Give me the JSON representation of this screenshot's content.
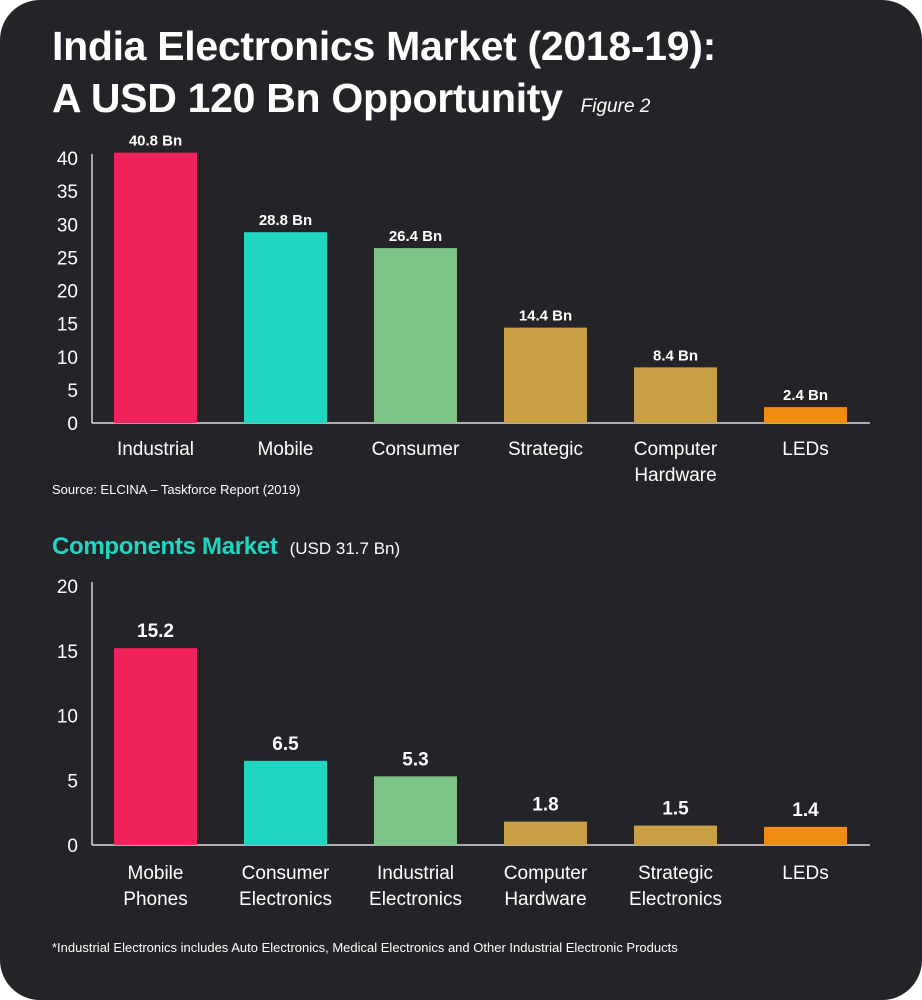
{
  "title_line1": "India Electronics Market (2018-19):",
  "title_line2": "A USD 120 Bn Opportunity",
  "figure_label": "Figure 2",
  "source": "Source: ELCINA – Taskforce Report (2019)",
  "components_heading": "Components Market",
  "components_subheading": "(USD 31.7 Bn)",
  "footnote": "*Industrial Electronics includes Auto Electronics, Medical Electronics and Other Industrial Electronic Products",
  "chart_data": [
    {
      "type": "bar",
      "categories": [
        [
          "Industrial"
        ],
        [
          "Mobile"
        ],
        [
          "Consumer"
        ],
        [
          "Strategic"
        ],
        [
          "Computer",
          "Hardware"
        ],
        [
          "LEDs"
        ]
      ],
      "values": [
        40.8,
        28.8,
        26.4,
        14.4,
        8.4,
        2.4
      ],
      "data_labels": [
        "40.8 Bn",
        "28.8 Bn",
        "26.4 Bn",
        "14.4 Bn",
        "8.4 Bn",
        "2.4 Bn"
      ],
      "colors": [
        "#f0235a",
        "#1fd6c1",
        "#7dc487",
        "#c9a043",
        "#c9a043",
        "#f08c12"
      ],
      "yticks": [
        "0",
        "5",
        "10",
        "15",
        "20",
        "25",
        "30",
        "35",
        "40"
      ],
      "ylim": [
        0,
        40
      ],
      "grid": false,
      "title": "",
      "xlabel": "",
      "ylabel": ""
    },
    {
      "type": "bar",
      "categories": [
        [
          "Mobile",
          "Phones"
        ],
        [
          "Consumer",
          "Electronics"
        ],
        [
          "Industrial",
          "Electronics"
        ],
        [
          "Computer",
          "Hardware"
        ],
        [
          "Strategic",
          "Electronics"
        ],
        [
          "LEDs"
        ]
      ],
      "values": [
        15.2,
        6.5,
        5.3,
        1.8,
        1.5,
        1.4
      ],
      "data_labels": [
        "15.2",
        "6.5",
        "5.3",
        "1.8",
        "1.5",
        "1.4"
      ],
      "colors": [
        "#f0235a",
        "#1fd6c1",
        "#7dc487",
        "#c9a043",
        "#c9a043",
        "#f08c12"
      ],
      "yticks": [
        "0",
        "5",
        "10",
        "15",
        "20"
      ],
      "ylim": [
        0,
        20
      ],
      "grid": false,
      "title": "",
      "xlabel": "",
      "ylabel": ""
    }
  ]
}
